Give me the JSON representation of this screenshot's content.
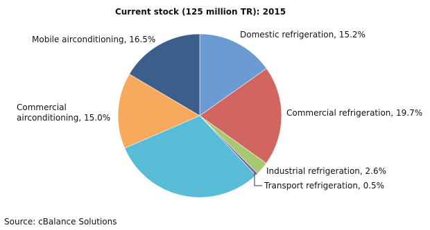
{
  "chart_data": {
    "type": "pie",
    "title": "Current stock (125 million TR): 2015",
    "values": [
      15.2,
      19.7,
      2.6,
      0.5,
      30.5,
      15.0,
      16.5
    ],
    "value_labels": [
      "Domestic refrigeration, 15.2%",
      "Commercial refrigeration, 19.7%",
      "Industrial refrigeration, 2.6%",
      "Transport refrigeration, 0.5%",
      null,
      "Commercial airconditioning, 15.0%",
      "Mobile airconditioning, 16.5%"
    ],
    "colors": [
      "#6b9bd2",
      "#d0665f",
      "#a6c86f",
      "#7e5ca3",
      "#59bcd6",
      "#f7a95e",
      "#3b5f8a"
    ],
    "source": "Source: cBalance Solutions"
  }
}
